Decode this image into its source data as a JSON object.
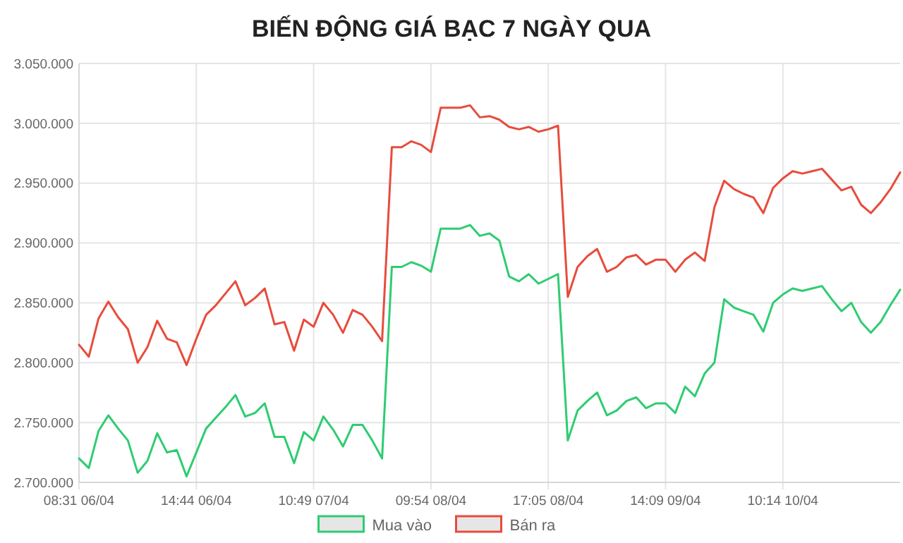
{
  "chart_data": {
    "type": "line",
    "title": "BIẾN ĐỘNG GIÁ BẠC 7 NGÀY QUA",
    "categories": [
      "08:31 06/04",
      null,
      null,
      null,
      null,
      null,
      null,
      null,
      null,
      null,
      null,
      null,
      "14:44 06/04",
      null,
      null,
      null,
      null,
      null,
      null,
      null,
      null,
      null,
      null,
      null,
      "10:49 07/04",
      null,
      null,
      null,
      null,
      null,
      null,
      null,
      null,
      null,
      null,
      null,
      "09:54 08/04",
      null,
      null,
      null,
      null,
      null,
      null,
      null,
      null,
      null,
      null,
      null,
      "17:05 08/04",
      null,
      null,
      null,
      null,
      null,
      null,
      null,
      null,
      null,
      null,
      null,
      "14:09 09/04",
      null,
      null,
      null,
      null,
      null,
      null,
      null,
      null,
      null,
      null,
      null,
      "10:14 10/04",
      null,
      null,
      null,
      null,
      null,
      null,
      null,
      null,
      null,
      null,
      null,
      null
    ],
    "ylim": [
      2700000,
      3050000
    ],
    "yticks": [
      {
        "value": 2700000,
        "label": "2.700.000"
      },
      {
        "value": 2750000,
        "label": "2.750.000"
      },
      {
        "value": 2800000,
        "label": "2.800.000"
      },
      {
        "value": 2850000,
        "label": "2.850.000"
      },
      {
        "value": 2900000,
        "label": "2.900.000"
      },
      {
        "value": 2950000,
        "label": "2.950.000"
      },
      {
        "value": 3000000,
        "label": "3.000.000"
      },
      {
        "value": 3050000,
        "label": "3.050.000"
      }
    ],
    "grid": true,
    "legend": "bottom",
    "marker": "none",
    "line_style": "solid",
    "series": [
      {
        "name": "Mua vào",
        "color": "#2ecc71",
        "values": [
          2720000,
          2712000,
          2743000,
          2756000,
          2745000,
          2735000,
          2708000,
          2718000,
          2741000,
          2725000,
          2727000,
          2705000,
          2725000,
          2745000,
          2754000,
          2763000,
          2773000,
          2755000,
          2758000,
          2766000,
          2738000,
          2738000,
          2716000,
          2742000,
          2735000,
          2755000,
          2744000,
          2730000,
          2748000,
          2748000,
          2735000,
          2720000,
          2880000,
          2880000,
          2884000,
          2881000,
          2876000,
          2912000,
          2912000,
          2912000,
          2915000,
          2906000,
          2908000,
          2902000,
          2872000,
          2868000,
          2874000,
          2866000,
          2870000,
          2874000,
          2735000,
          2760000,
          2768000,
          2775000,
          2756000,
          2760000,
          2768000,
          2771000,
          2762000,
          2766000,
          2766000,
          2758000,
          2780000,
          2772000,
          2791000,
          2800000,
          2853000,
          2846000,
          2843000,
          2840000,
          2826000,
          2850000,
          2857000,
          2862000,
          2860000,
          2862000,
          2864000,
          2853000,
          2843000,
          2850000,
          2834000,
          2825000,
          2834000,
          2848000,
          2861000
        ]
      },
      {
        "name": "Bán ra",
        "color": "#e74c3c",
        "values": [
          2815000,
          2805000,
          2837000,
          2851000,
          2838000,
          2828000,
          2800000,
          2813000,
          2835000,
          2820000,
          2817000,
          2798000,
          2820000,
          2840000,
          2848000,
          2858000,
          2868000,
          2848000,
          2854000,
          2862000,
          2832000,
          2834000,
          2810000,
          2836000,
          2830000,
          2850000,
          2840000,
          2825000,
          2844000,
          2840000,
          2830000,
          2818000,
          2980000,
          2980000,
          2985000,
          2982000,
          2976000,
          3013000,
          3013000,
          3013000,
          3015000,
          3005000,
          3006000,
          3003000,
          2997000,
          2995000,
          2997000,
          2993000,
          2995000,
          2998000,
          2855000,
          2880000,
          2889000,
          2895000,
          2876000,
          2880000,
          2888000,
          2890000,
          2882000,
          2886000,
          2886000,
          2876000,
          2886000,
          2892000,
          2885000,
          2930000,
          2952000,
          2945000,
          2941000,
          2938000,
          2925000,
          2946000,
          2954000,
          2960000,
          2958000,
          2960000,
          2962000,
          2953000,
          2944000,
          2947000,
          2932000,
          2925000,
          2934000,
          2945000,
          2959000
        ]
      }
    ]
  }
}
